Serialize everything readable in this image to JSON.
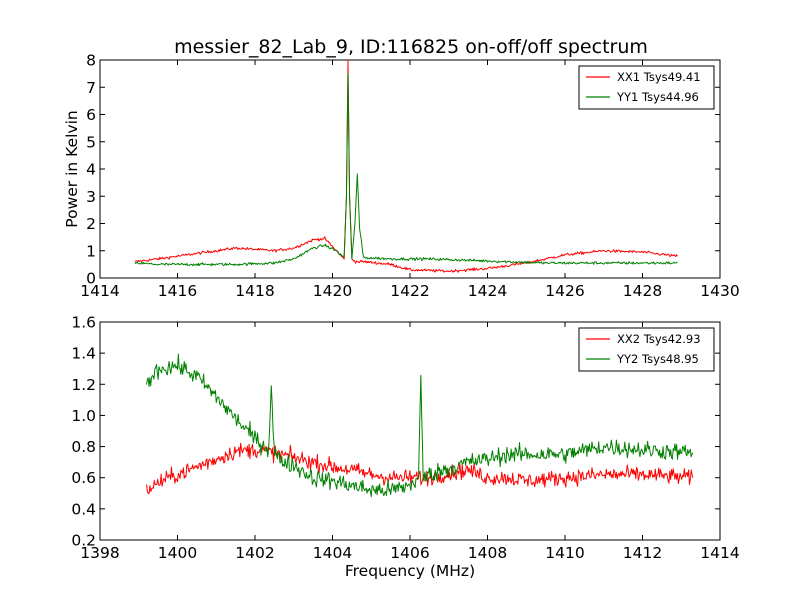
{
  "title": "messier_82_Lab_9, ID:116825 on-off/off spectrum",
  "chart_data": [
    {
      "type": "line",
      "title": "messier_82_Lab_9, ID:116825 on-off/off spectrum",
      "xlabel": "",
      "ylabel": "Power in Kelvin",
      "xlim": [
        1414,
        1430
      ],
      "ylim": [
        0,
        8
      ],
      "xticks": [
        "1414",
        "1416",
        "1418",
        "1420",
        "1422",
        "1424",
        "1426",
        "1428",
        "1430"
      ],
      "yticks": [
        "0",
        "1",
        "2",
        "3",
        "4",
        "5",
        "6",
        "7",
        "8"
      ],
      "legend_position": "top-right",
      "series": [
        {
          "name": "XX1 Tsys49.41",
          "color": "#ff0000",
          "noise": 0.05,
          "x": [
            1414.9,
            1415.5,
            1416.5,
            1417.5,
            1418.0,
            1418.5,
            1419.0,
            1419.5,
            1419.8,
            1420.1,
            1420.3,
            1420.36,
            1420.4,
            1420.44,
            1420.5,
            1420.6,
            1420.8,
            1421.5,
            1422.0,
            1423.0,
            1424.0,
            1425.0,
            1425.5,
            1426.0,
            1427.0,
            1428.0,
            1428.9
          ],
          "y": [
            0.6,
            0.7,
            0.9,
            1.1,
            1.05,
            1.0,
            1.1,
            1.4,
            1.45,
            1.0,
            0.7,
            3.0,
            8.0,
            3.0,
            0.7,
            0.6,
            0.6,
            0.5,
            0.3,
            0.25,
            0.35,
            0.55,
            0.7,
            0.85,
            1.0,
            0.95,
            0.8
          ]
        },
        {
          "name": "YY1 Tsys44.96",
          "color": "#008000",
          "noise": 0.05,
          "x": [
            1414.9,
            1415.5,
            1416.5,
            1417.5,
            1418.5,
            1419.0,
            1419.5,
            1419.8,
            1420.1,
            1420.3,
            1420.36,
            1420.4,
            1420.44,
            1420.5,
            1420.58,
            1420.64,
            1420.7,
            1420.8,
            1421.5,
            1422.5,
            1423.5,
            1424.5,
            1425.5,
            1426.5,
            1427.5,
            1428.9
          ],
          "y": [
            0.55,
            0.5,
            0.5,
            0.5,
            0.55,
            0.7,
            1.1,
            1.2,
            1.0,
            0.75,
            3.0,
            7.5,
            3.0,
            0.7,
            2.0,
            3.85,
            1.8,
            0.75,
            0.7,
            0.7,
            0.65,
            0.6,
            0.55,
            0.55,
            0.55,
            0.55
          ]
        }
      ]
    },
    {
      "type": "line",
      "title": "",
      "xlabel": "Frequency (MHz)",
      "ylabel": "",
      "xlim": [
        1398,
        1414
      ],
      "ylim": [
        0.2,
        1.6
      ],
      "xticks": [
        "1398",
        "1400",
        "1402",
        "1404",
        "1406",
        "1408",
        "1410",
        "1412",
        "1414"
      ],
      "yticks": [
        "0.2",
        "0.4",
        "0.6",
        "0.8",
        "1.0",
        "1.2",
        "1.4",
        "1.6"
      ],
      "legend_position": "top-right",
      "series": [
        {
          "name": "XX2 Tsys42.93",
          "color": "#ff0000",
          "noise": 0.05,
          "x": [
            1399.2,
            1399.6,
            1400.0,
            1400.5,
            1401.0,
            1401.5,
            1402.0,
            1402.5,
            1403.0,
            1403.5,
            1404.0,
            1404.5,
            1405.0,
            1405.5,
            1406.0,
            1406.5,
            1407.0,
            1407.5,
            1408.0,
            1408.5,
            1409.0,
            1410.0,
            1411.0,
            1412.0,
            1413.3
          ],
          "y": [
            0.52,
            0.58,
            0.62,
            0.67,
            0.72,
            0.77,
            0.78,
            0.76,
            0.73,
            0.7,
            0.67,
            0.65,
            0.62,
            0.6,
            0.6,
            0.6,
            0.63,
            0.65,
            0.6,
            0.6,
            0.58,
            0.6,
            0.62,
            0.62,
            0.6
          ]
        },
        {
          "name": "YY2 Tsys48.95",
          "color": "#008000",
          "noise": 0.055,
          "x": [
            1399.2,
            1399.5,
            1400.0,
            1400.5,
            1401.0,
            1401.5,
            1402.0,
            1402.35,
            1402.42,
            1402.49,
            1402.6,
            1403.0,
            1403.5,
            1404.0,
            1404.5,
            1405.0,
            1405.5,
            1406.0,
            1406.22,
            1406.28,
            1406.34,
            1406.5,
            1407.0,
            1407.5,
            1408.0,
            1408.5,
            1409.0,
            1410.0,
            1411.0,
            1412.0,
            1413.3
          ],
          "y": [
            1.2,
            1.3,
            1.32,
            1.25,
            1.12,
            0.98,
            0.85,
            0.78,
            1.2,
            0.78,
            0.72,
            0.68,
            0.6,
            0.58,
            0.55,
            0.52,
            0.52,
            0.55,
            0.6,
            1.23,
            0.6,
            0.62,
            0.66,
            0.7,
            0.72,
            0.75,
            0.75,
            0.75,
            0.8,
            0.78,
            0.76
          ]
        }
      ]
    }
  ]
}
